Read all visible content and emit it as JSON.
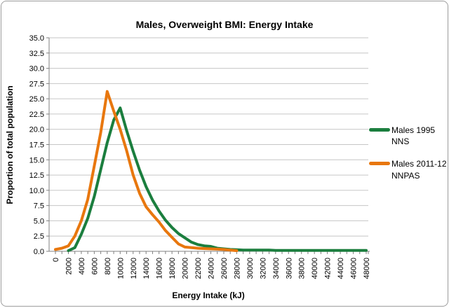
{
  "chart_data": {
    "type": "line",
    "title": "Males, Overweight BMI: Energy Intake",
    "xlabel": "Energy Intake (kJ)",
    "ylabel": "Proportion of total population",
    "ylim": [
      0,
      35
    ],
    "grid": true,
    "legend_position": "right",
    "colors": {
      "grid": "#c6c6c6",
      "axis": "#808080",
      "text": "#000000"
    },
    "y_tick_labels": [
      "0.0",
      "2.5",
      "5.0",
      "7.5",
      "10.0",
      "12.5",
      "15.0",
      "17.5",
      "20.0",
      "22.5",
      "25.0",
      "27.5",
      "30.0",
      "32.5",
      "35.0"
    ],
    "x_tick_labels": [
      0,
      2000,
      4000,
      6000,
      8000,
      10000,
      12000,
      14000,
      16000,
      18000,
      20000,
      22000,
      24000,
      26000,
      28000,
      30000,
      32000,
      34000,
      36000,
      38000,
      40000,
      42000,
      44000,
      46000,
      48000
    ],
    "x_categories": [
      0,
      1000,
      2000,
      3000,
      4000,
      5000,
      6000,
      7000,
      8000,
      9000,
      10000,
      11000,
      12000,
      13000,
      14000,
      15000,
      16000,
      17000,
      18000,
      19000,
      20000,
      21000,
      22000,
      23000,
      24000,
      25000,
      26000,
      27000,
      28000,
      29000,
      30000,
      31000,
      32000,
      33000,
      34000,
      35000,
      36000,
      37000,
      38000,
      39000,
      40000,
      41000,
      42000,
      43000,
      44000,
      45000,
      46000,
      47000,
      48000
    ],
    "series": [
      {
        "name": "Males 1995 NNS",
        "color": "#1b7e3e",
        "values": [
          null,
          null,
          0.1,
          0.6,
          2.8,
          5.4,
          9.0,
          13.4,
          17.8,
          21.5,
          23.5,
          19.8,
          16.4,
          13.3,
          10.6,
          8.4,
          6.6,
          5.1,
          3.9,
          2.9,
          2.2,
          1.5,
          1.1,
          0.9,
          0.8,
          0.5,
          0.4,
          0.3,
          0.25,
          0.2,
          0.2,
          0.2,
          0.2,
          0.2,
          0.15,
          0.15,
          0.15,
          0.15,
          0.15,
          0.15,
          0.15,
          0.15,
          0.15,
          0.15,
          0.15,
          0.15,
          0.15,
          0.15,
          0.15
        ]
      },
      {
        "name": "Males 2011-12 NNPAS",
        "color": "#e8770e",
        "values": [
          0.3,
          0.5,
          0.9,
          2.5,
          5.0,
          8.5,
          14.0,
          19.5,
          26.2,
          23.0,
          20.0,
          16.5,
          12.5,
          9.5,
          7.3,
          6.0,
          4.8,
          3.4,
          2.3,
          1.2,
          0.7,
          0.6,
          0.5,
          0.45,
          0.4,
          0.35,
          0.3,
          0.2,
          0.1,
          null,
          null,
          null,
          null,
          null,
          null,
          null,
          null,
          null,
          null,
          null,
          null,
          null,
          null,
          null,
          null,
          null,
          null,
          null,
          null
        ]
      }
    ]
  }
}
